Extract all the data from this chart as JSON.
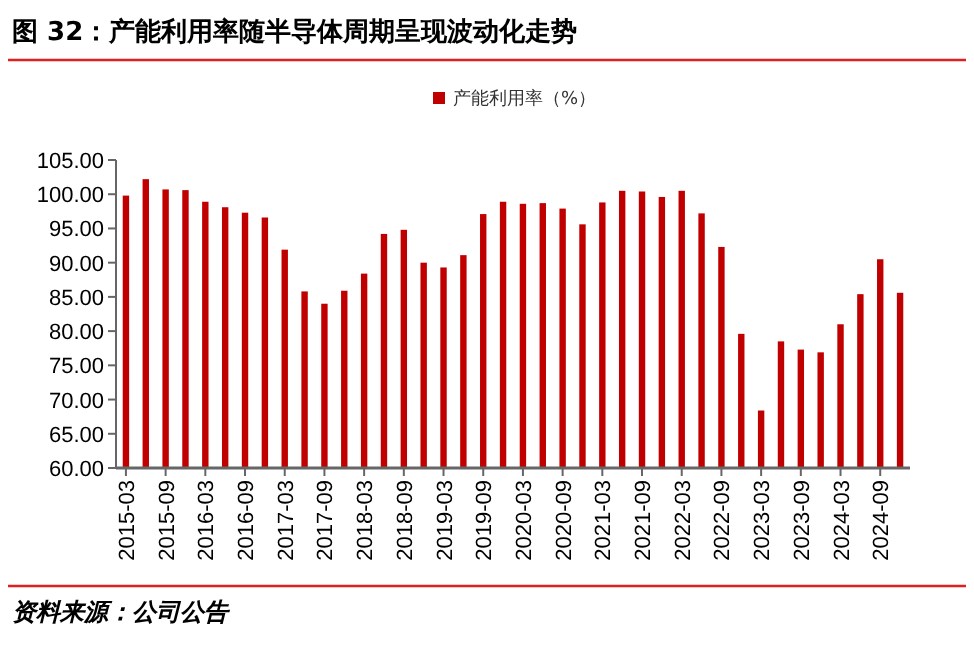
{
  "chart_data": {
    "type": "bar",
    "title": "图 32：产能利用率随半导体周期呈现波动化走势",
    "categories": [
      "2015-03",
      null,
      "2015-09",
      null,
      "2016-03",
      null,
      "2016-09",
      null,
      "2017-03",
      null,
      "2017-09",
      null,
      "2018-03",
      null,
      "2018-09",
      null,
      "2019-03",
      null,
      "2019-09",
      null,
      "2020-03",
      null,
      "2020-09",
      null,
      "2021-03",
      null,
      "2021-09",
      null,
      "2022-03",
      null,
      "2022-09",
      null,
      "2023-03",
      null,
      "2023-09",
      null,
      "2024-03",
      null,
      "2024-09",
      null
    ],
    "series": [
      {
        "name": "产能利用率（%）",
        "color": "#c00000",
        "values": [
          99.8,
          102.2,
          100.7,
          100.6,
          98.9,
          98.1,
          97.3,
          96.6,
          91.9,
          85.8,
          84.0,
          85.9,
          88.4,
          94.2,
          94.8,
          90.0,
          89.3,
          91.1,
          97.1,
          98.9,
          98.6,
          98.7,
          97.9,
          95.6,
          98.8,
          100.5,
          100.4,
          99.6,
          100.5,
          97.2,
          92.3,
          79.6,
          68.4,
          78.5,
          77.3,
          76.9,
          81.0,
          85.4,
          90.5,
          85.6
        ]
      }
    ],
    "ylim": [
      60,
      105
    ],
    "yticks": [
      {
        "value": 60,
        "label": "60.00"
      },
      {
        "value": 65,
        "label": "65.00"
      },
      {
        "value": 70,
        "label": "70.00"
      },
      {
        "value": 75,
        "label": "75.00"
      },
      {
        "value": 80,
        "label": "80.00"
      },
      {
        "value": 85,
        "label": "85.00"
      },
      {
        "value": 90,
        "label": "90.00"
      },
      {
        "value": 95,
        "label": "95.00"
      },
      {
        "value": 100,
        "label": "100.00"
      },
      {
        "value": 105,
        "label": "105.00"
      }
    ],
    "legend": "top",
    "annotations": [
      "资料来源：公司公告"
    ]
  }
}
